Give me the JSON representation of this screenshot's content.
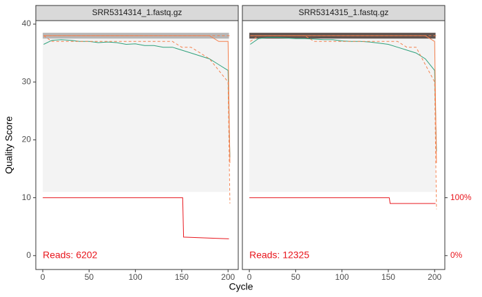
{
  "x_label": "Cycle",
  "y_label": "Quality Score",
  "chart_data": [
    {
      "type": "line",
      "title": "SRR5314314_1.fastq.gz",
      "annotation": "Reads:  6202",
      "xlim": [
        -7.5,
        211
      ],
      "xticks": [
        0,
        50,
        100,
        150,
        200
      ],
      "ylim": [
        -2.4,
        40.6
      ],
      "yticks": [
        0,
        10,
        20,
        30,
        40
      ],
      "y2lim": [
        -24,
        406
      ],
      "x": [
        1,
        10,
        20,
        30,
        40,
        50,
        60,
        70,
        80,
        90,
        100,
        110,
        120,
        130,
        140,
        150,
        160,
        170,
        180,
        190,
        200,
        202
      ],
      "series": [
        {
          "color": "#2ca07a",
          "values": [
            36.5,
            37.2,
            37.3,
            37.2,
            37,
            37,
            36.8,
            36.9,
            36.8,
            36.5,
            36.6,
            36.3,
            36.3,
            36,
            36,
            35.5,
            35,
            34.5,
            34,
            33,
            32,
            17
          ]
        },
        {
          "color": "#f4804d",
          "values": [
            38,
            38,
            38,
            38,
            38,
            38,
            38,
            38,
            38,
            38,
            38,
            38,
            38,
            38,
            38,
            38,
            38,
            38,
            38,
            37,
            37,
            16
          ]
        },
        {
          "color": "#f4804d",
          "dash": true,
          "values": [
            38,
            37,
            37,
            37,
            37,
            37,
            37,
            37,
            37,
            37,
            37,
            37,
            37,
            37,
            37,
            36,
            36,
            35,
            34,
            32,
            30,
            9
          ]
        },
        {
          "color": "#f4804d",
          "dash": true,
          "values": [
            38,
            38,
            38,
            38,
            38,
            38,
            38,
            38,
            38,
            38,
            38,
            38,
            38,
            38,
            38,
            38,
            38,
            38,
            38,
            38,
            38,
            38
          ]
        },
        {
          "color": "#e8141b",
          "axis": "y2",
          "x": [
            0,
            151,
            152,
            201
          ],
          "values": [
            100,
            100,
            32,
            29
          ]
        }
      ]
    },
    {
      "type": "line",
      "title": "SRR5314315_1.fastq.gz",
      "annotation": "Reads:  12325",
      "xlim": [
        -7.5,
        211
      ],
      "xticks": [
        0,
        50,
        100,
        150,
        200
      ],
      "ylim": [
        -2.4,
        40.6
      ],
      "y2lim": [
        -24,
        406
      ],
      "y2ticks": [
        {
          "value": 0,
          "label": "0%"
        },
        {
          "value": 100,
          "label": "100%"
        }
      ],
      "x": [
        1,
        10,
        20,
        30,
        40,
        50,
        60,
        70,
        80,
        90,
        100,
        110,
        120,
        130,
        140,
        150,
        160,
        170,
        180,
        190,
        200,
        202
      ],
      "series": [
        {
          "color": "#2ca07a",
          "values": [
            36.5,
            37.5,
            37.7,
            37.7,
            37.6,
            37.5,
            37.5,
            37.4,
            37.3,
            37.3,
            37.1,
            37,
            37,
            36.9,
            36.7,
            36.5,
            36,
            35.5,
            35,
            34,
            32,
            18
          ]
        },
        {
          "color": "#f4804d",
          "values": [
            38,
            38,
            38,
            38,
            38,
            38,
            38,
            38,
            38,
            38,
            38,
            38,
            38,
            38,
            38,
            38,
            38,
            38,
            38,
            38,
            37,
            16
          ]
        },
        {
          "color": "#f4804d",
          "dash": true,
          "values": [
            37,
            38,
            38,
            38,
            38,
            38,
            38,
            37,
            37,
            37,
            37,
            37,
            37,
            37,
            37,
            37,
            37,
            36,
            36,
            33,
            30,
            8
          ]
        },
        {
          "color": "#f4804d",
          "dash": true,
          "values": [
            38,
            38,
            38,
            38,
            38,
            38,
            38,
            38,
            38,
            38,
            38,
            38,
            38,
            38,
            38,
            38,
            38,
            38,
            38,
            38,
            38,
            38
          ]
        },
        {
          "color": "#e8141b",
          "axis": "y2",
          "x": [
            0,
            151,
            152,
            201
          ],
          "values": [
            100,
            100,
            90,
            90
          ]
        }
      ]
    }
  ]
}
